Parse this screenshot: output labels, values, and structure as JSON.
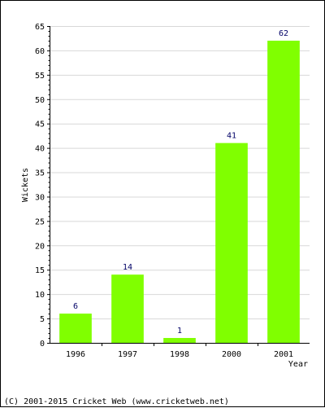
{
  "chart_data": {
    "type": "bar",
    "categories": [
      "1996",
      "1997",
      "1998",
      "2000",
      "2001"
    ],
    "values": [
      6,
      14,
      1,
      41,
      62
    ],
    "title": "",
    "xlabel": "Year",
    "ylabel": "Wickets",
    "ylim": [
      0,
      65
    ],
    "yticks": [
      0,
      5,
      10,
      15,
      20,
      25,
      30,
      35,
      40,
      45,
      50,
      55,
      60,
      65
    ],
    "grid": true,
    "bar_color": "#80ff00",
    "data_label_color": "#000066"
  },
  "footer": {
    "copyright": "(C) 2001-2015 Cricket Web (www.cricketweb.net)"
  }
}
